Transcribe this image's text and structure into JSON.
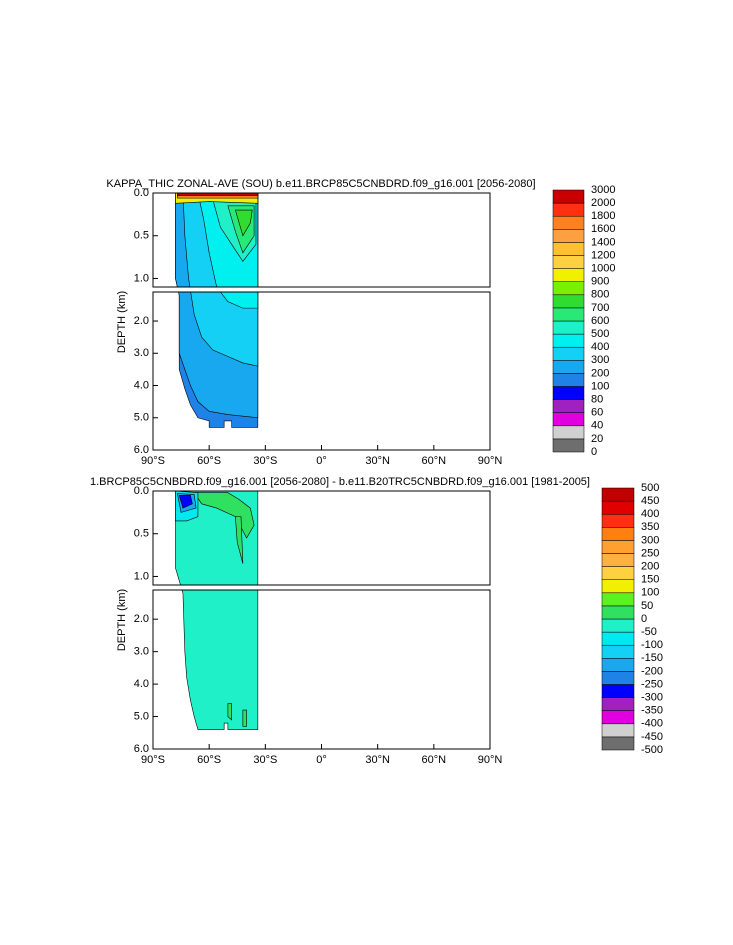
{
  "chart_data": [
    {
      "type": "contour",
      "title": "KAPPA_THIC ZONAL-AVE (SOU) b.e11.BRCP85C5CNBDRD.f09_g16.001 [2056-2080]",
      "y_label": "DEPTH (km)",
      "xlim": [
        -90,
        90
      ],
      "xticks": [
        {
          "value": -90,
          "label": "90°S"
        },
        {
          "value": -60,
          "label": "60°S"
        },
        {
          "value": -30,
          "label": "30°S"
        },
        {
          "value": 0,
          "label": "0°"
        },
        {
          "value": 30,
          "label": "30°N"
        },
        {
          "value": 60,
          "label": "60°N"
        },
        {
          "value": 90,
          "label": "90°N"
        }
      ],
      "ylim": [
        0,
        6
      ],
      "ybreak": 1.1,
      "yticks": [
        {
          "value": 0,
          "label": "0.0"
        },
        {
          "value": 0.5,
          "label": "0.5"
        },
        {
          "value": 1,
          "label": "1.0"
        },
        {
          "value": 2,
          "label": "2.0"
        },
        {
          "value": 3,
          "label": "3.0"
        },
        {
          "value": 4,
          "label": "4.0"
        },
        {
          "value": 5,
          "label": "5.0"
        },
        {
          "value": 6,
          "label": "6.0"
        }
      ],
      "levels": [
        0,
        20,
        40,
        60,
        80,
        100,
        200,
        300,
        400,
        500,
        600,
        700,
        800,
        900,
        1000,
        1200,
        1400,
        1600,
        1800,
        2000,
        3000
      ],
      "colors": [
        "#6e6e6e",
        "#d0d0d0",
        "#e000e0",
        "#a020c0",
        "#0000ff",
        "#1e82e6",
        "#18a8f0",
        "#14d0f4",
        "#00f0f0",
        "#20f0c8",
        "#28e878",
        "#30dc30",
        "#78f000",
        "#f0f000",
        "#ffd040",
        "#ffc030",
        "#ffa040",
        "#ff8020",
        "#ff3010",
        "#c80000"
      ]
    },
    {
      "type": "contour",
      "title": "1.BRCP85C5CNBDRD.f09_g16.001 [2056-2080] - b.e11.B20TRC5CNBDRD.f09_g16.001 [1981-2005]",
      "y_label": "DEPTH (km)",
      "xlim": [
        -90,
        90
      ],
      "xticks": [
        {
          "value": -90,
          "label": "90°S"
        },
        {
          "value": -60,
          "label": "60°S"
        },
        {
          "value": -30,
          "label": "30°S"
        },
        {
          "value": 0,
          "label": "0°"
        },
        {
          "value": 30,
          "label": "30°N"
        },
        {
          "value": 60,
          "label": "60°N"
        },
        {
          "value": 90,
          "label": "90°N"
        }
      ],
      "ylim": [
        0,
        6
      ],
      "ybreak": 1.1,
      "yticks": [
        {
          "value": 0,
          "label": "0.0"
        },
        {
          "value": 0.5,
          "label": "0.5"
        },
        {
          "value": 1,
          "label": "1.0"
        },
        {
          "value": 2,
          "label": "2.0"
        },
        {
          "value": 3,
          "label": "3.0"
        },
        {
          "value": 4,
          "label": "4.0"
        },
        {
          "value": 5,
          "label": "5.0"
        },
        {
          "value": 6,
          "label": "6.0"
        }
      ],
      "levels": [
        -500,
        -450,
        -400,
        -350,
        -300,
        -250,
        -200,
        -150,
        -100,
        -50,
        0,
        50,
        100,
        150,
        200,
        250,
        300,
        350,
        400,
        450,
        500
      ],
      "colors": [
        "#6e6e6e",
        "#d0d0d0",
        "#e000e0",
        "#a020c0",
        "#0000ff",
        "#1e82e6",
        "#18a8f0",
        "#14d0f4",
        "#00e8f0",
        "#20f0c8",
        "#30e060",
        "#60f020",
        "#f0f000",
        "#ffd040",
        "#ffb040",
        "#ffa030",
        "#ff8010",
        "#ff3010",
        "#e00000",
        "#c00000"
      ]
    }
  ]
}
